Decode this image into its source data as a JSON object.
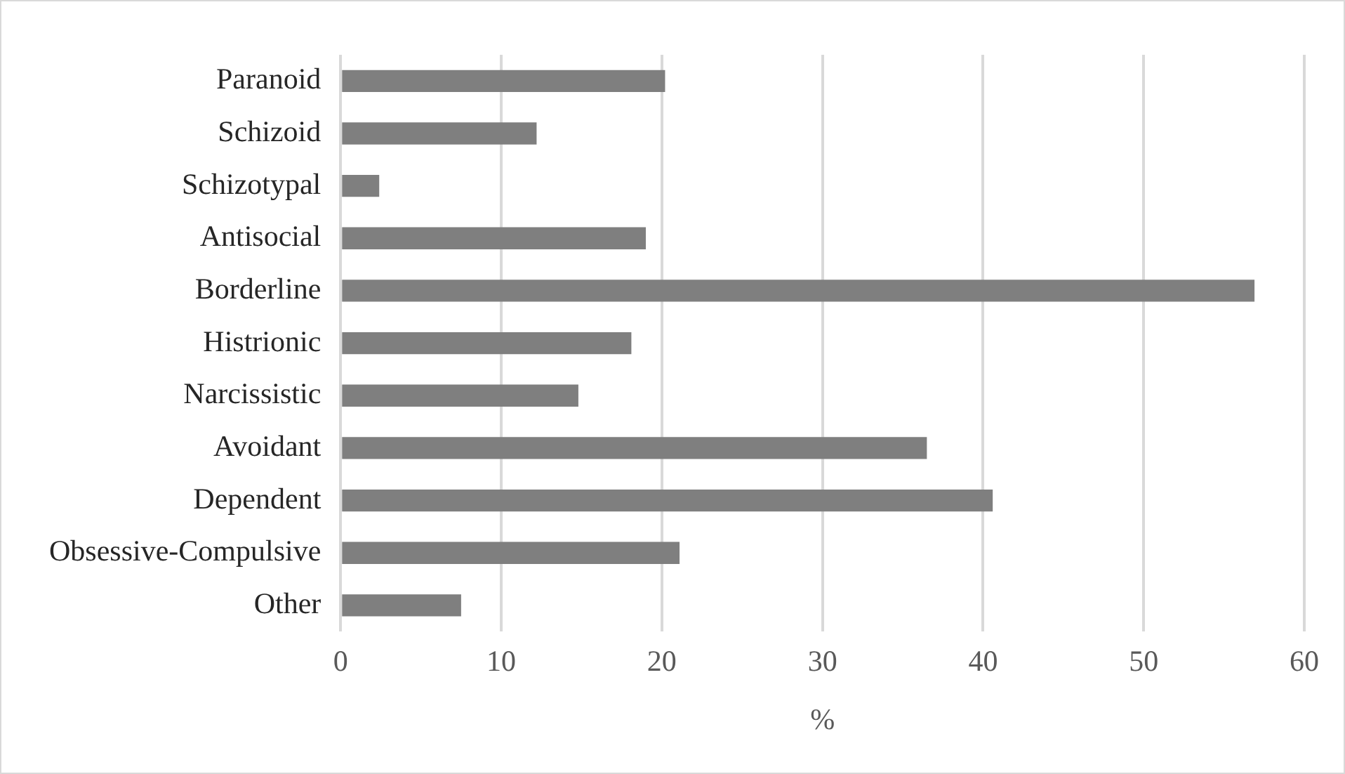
{
  "chart_data": {
    "type": "bar",
    "orientation": "horizontal",
    "xlabel": "%",
    "categories": [
      "Paranoid",
      "Schizoid",
      "Schizotypal",
      "Antisocial",
      "Borderline",
      "Histrionic",
      "Narcissistic",
      "Avoidant",
      "Dependent",
      "Obsessive-Compulsive",
      "Other"
    ],
    "values": [
      20.2,
      12.2,
      2.4,
      19.0,
      56.9,
      18.1,
      14.8,
      36.5,
      40.6,
      21.1,
      7.5
    ],
    "color": "#7f7f7f",
    "xlim": [
      0,
      60
    ],
    "xticks": [
      0,
      10,
      20,
      30,
      40,
      50,
      60
    ],
    "grid": "x",
    "legend": false
  }
}
